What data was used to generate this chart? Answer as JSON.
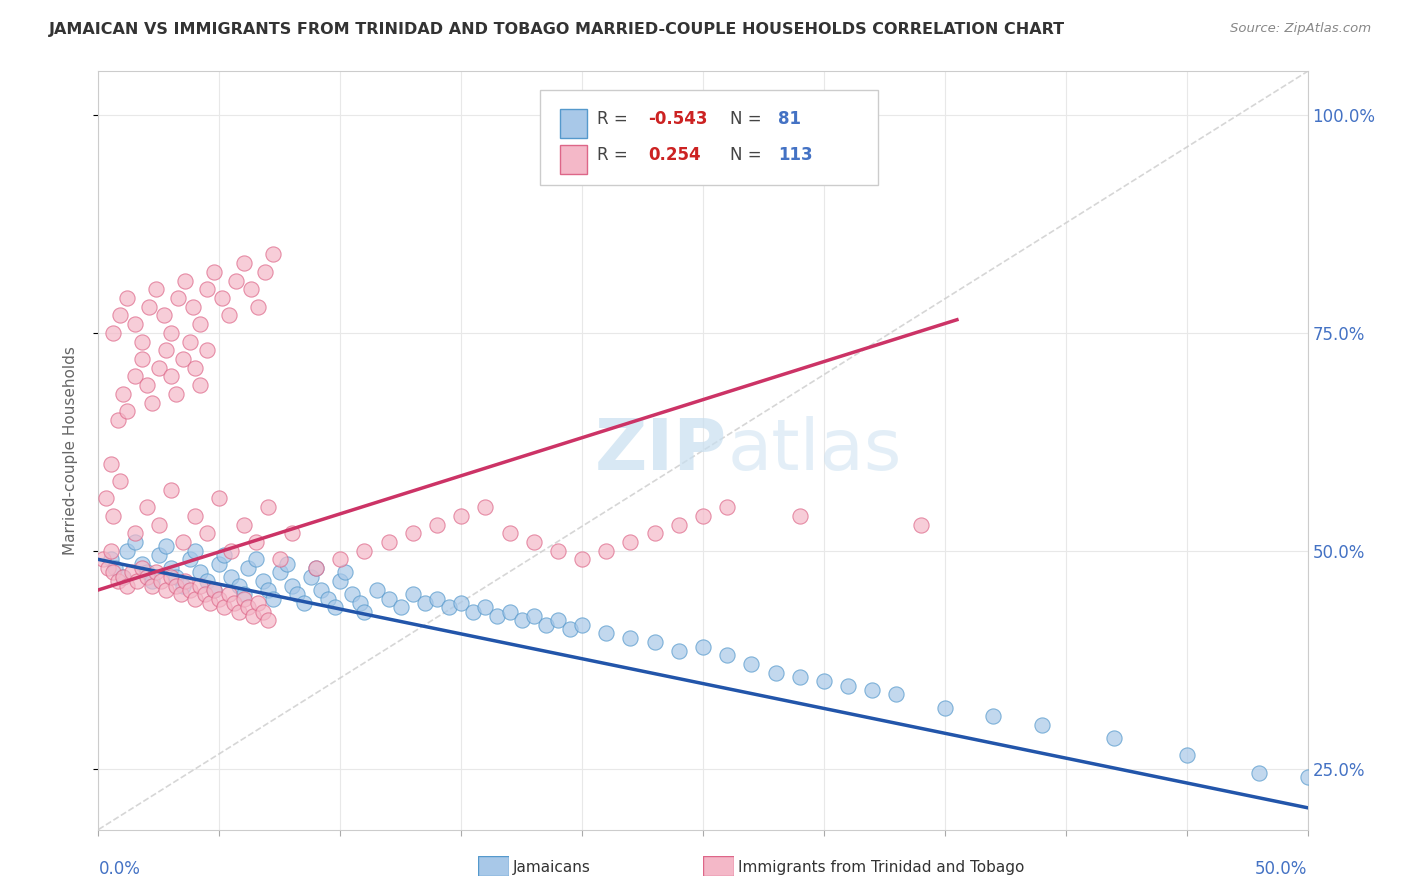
{
  "title": "JAMAICAN VS IMMIGRANTS FROM TRINIDAD AND TOBAGO MARRIED-COUPLE HOUSEHOLDS CORRELATION CHART",
  "source": "Source: ZipAtlas.com",
  "ylabel_label": "Married-couple Households",
  "legend_blue_R": "-0.543",
  "legend_blue_N": "81",
  "legend_pink_R": "0.254",
  "legend_pink_N": "113",
  "legend_blue_label": "Jamaicans",
  "legend_pink_label": "Immigrants from Trinidad and Tobago",
  "blue_color": "#a8c8e8",
  "pink_color": "#f4b8c8",
  "blue_edge_color": "#5599cc",
  "pink_edge_color": "#dd6688",
  "blue_line_color": "#2255aa",
  "pink_line_color": "#cc3366",
  "ref_line_color": "#cccccc",
  "watermark_zip": "ZIP",
  "watermark_atlas": "atlas",
  "xmin": 0.0,
  "xmax": 0.5,
  "ymin": 0.18,
  "ymax": 1.05,
  "ytick_vals": [
    0.25,
    0.5,
    0.75,
    1.0
  ],
  "ytick_labels": [
    "25.0%",
    "50.0%",
    "75.0%",
    "100.0%"
  ],
  "blue_trend_x": [
    0.0,
    0.5
  ],
  "blue_trend_y": [
    0.49,
    0.205
  ],
  "pink_trend_x": [
    0.0,
    0.355
  ],
  "pink_trend_y": [
    0.455,
    0.765
  ],
  "ref_line_x": [
    0.0,
    0.5
  ],
  "ref_line_y": [
    0.18,
    1.05
  ],
  "blue_x": [
    0.005,
    0.007,
    0.01,
    0.012,
    0.015,
    0.018,
    0.02,
    0.022,
    0.025,
    0.028,
    0.03,
    0.032,
    0.035,
    0.038,
    0.04,
    0.042,
    0.045,
    0.048,
    0.05,
    0.052,
    0.055,
    0.058,
    0.06,
    0.062,
    0.065,
    0.068,
    0.07,
    0.072,
    0.075,
    0.078,
    0.08,
    0.082,
    0.085,
    0.088,
    0.09,
    0.092,
    0.095,
    0.098,
    0.1,
    0.102,
    0.105,
    0.108,
    0.11,
    0.115,
    0.12,
    0.125,
    0.13,
    0.135,
    0.14,
    0.145,
    0.15,
    0.155,
    0.16,
    0.165,
    0.17,
    0.175,
    0.18,
    0.185,
    0.19,
    0.195,
    0.2,
    0.21,
    0.22,
    0.23,
    0.24,
    0.25,
    0.26,
    0.27,
    0.28,
    0.29,
    0.3,
    0.31,
    0.32,
    0.33,
    0.35,
    0.37,
    0.39,
    0.42,
    0.45,
    0.48,
    0.5
  ],
  "blue_y": [
    0.49,
    0.48,
    0.47,
    0.5,
    0.51,
    0.485,
    0.475,
    0.465,
    0.495,
    0.505,
    0.48,
    0.47,
    0.46,
    0.49,
    0.5,
    0.475,
    0.465,
    0.455,
    0.485,
    0.495,
    0.47,
    0.46,
    0.45,
    0.48,
    0.49,
    0.465,
    0.455,
    0.445,
    0.475,
    0.485,
    0.46,
    0.45,
    0.44,
    0.47,
    0.48,
    0.455,
    0.445,
    0.435,
    0.465,
    0.475,
    0.45,
    0.44,
    0.43,
    0.455,
    0.445,
    0.435,
    0.45,
    0.44,
    0.445,
    0.435,
    0.44,
    0.43,
    0.435,
    0.425,
    0.43,
    0.42,
    0.425,
    0.415,
    0.42,
    0.41,
    0.415,
    0.405,
    0.4,
    0.395,
    0.385,
    0.39,
    0.38,
    0.37,
    0.36,
    0.355,
    0.35,
    0.345,
    0.34,
    0.335,
    0.32,
    0.31,
    0.3,
    0.285,
    0.265,
    0.245,
    0.24
  ],
  "pink_x": [
    0.002,
    0.004,
    0.005,
    0.006,
    0.008,
    0.01,
    0.012,
    0.014,
    0.016,
    0.018,
    0.02,
    0.022,
    0.024,
    0.026,
    0.028,
    0.03,
    0.032,
    0.034,
    0.036,
    0.038,
    0.04,
    0.042,
    0.044,
    0.046,
    0.048,
    0.05,
    0.052,
    0.054,
    0.056,
    0.058,
    0.06,
    0.062,
    0.064,
    0.066,
    0.068,
    0.07,
    0.005,
    0.008,
    0.01,
    0.012,
    0.015,
    0.018,
    0.02,
    0.022,
    0.025,
    0.028,
    0.03,
    0.032,
    0.035,
    0.038,
    0.04,
    0.042,
    0.045,
    0.006,
    0.009,
    0.012,
    0.015,
    0.018,
    0.021,
    0.024,
    0.027,
    0.03,
    0.033,
    0.036,
    0.039,
    0.042,
    0.045,
    0.048,
    0.051,
    0.054,
    0.057,
    0.06,
    0.063,
    0.066,
    0.069,
    0.072,
    0.003,
    0.006,
    0.009,
    0.015,
    0.02,
    0.025,
    0.03,
    0.035,
    0.04,
    0.045,
    0.05,
    0.055,
    0.06,
    0.065,
    0.07,
    0.075,
    0.08,
    0.09,
    0.1,
    0.11,
    0.12,
    0.13,
    0.14,
    0.15,
    0.16,
    0.17,
    0.18,
    0.19,
    0.2,
    0.21,
    0.22,
    0.23,
    0.24,
    0.25,
    0.26,
    0.29,
    0.34
  ],
  "pink_y": [
    0.49,
    0.48,
    0.5,
    0.475,
    0.465,
    0.47,
    0.46,
    0.475,
    0.465,
    0.48,
    0.47,
    0.46,
    0.475,
    0.465,
    0.455,
    0.47,
    0.46,
    0.45,
    0.465,
    0.455,
    0.445,
    0.46,
    0.45,
    0.44,
    0.455,
    0.445,
    0.435,
    0.45,
    0.44,
    0.43,
    0.445,
    0.435,
    0.425,
    0.44,
    0.43,
    0.42,
    0.6,
    0.65,
    0.68,
    0.66,
    0.7,
    0.72,
    0.69,
    0.67,
    0.71,
    0.73,
    0.7,
    0.68,
    0.72,
    0.74,
    0.71,
    0.69,
    0.73,
    0.75,
    0.77,
    0.79,
    0.76,
    0.74,
    0.78,
    0.8,
    0.77,
    0.75,
    0.79,
    0.81,
    0.78,
    0.76,
    0.8,
    0.82,
    0.79,
    0.77,
    0.81,
    0.83,
    0.8,
    0.78,
    0.82,
    0.84,
    0.56,
    0.54,
    0.58,
    0.52,
    0.55,
    0.53,
    0.57,
    0.51,
    0.54,
    0.52,
    0.56,
    0.5,
    0.53,
    0.51,
    0.55,
    0.49,
    0.52,
    0.48,
    0.49,
    0.5,
    0.51,
    0.52,
    0.53,
    0.54,
    0.55,
    0.52,
    0.51,
    0.5,
    0.49,
    0.5,
    0.51,
    0.52,
    0.53,
    0.54,
    0.55,
    0.54,
    0.53
  ]
}
